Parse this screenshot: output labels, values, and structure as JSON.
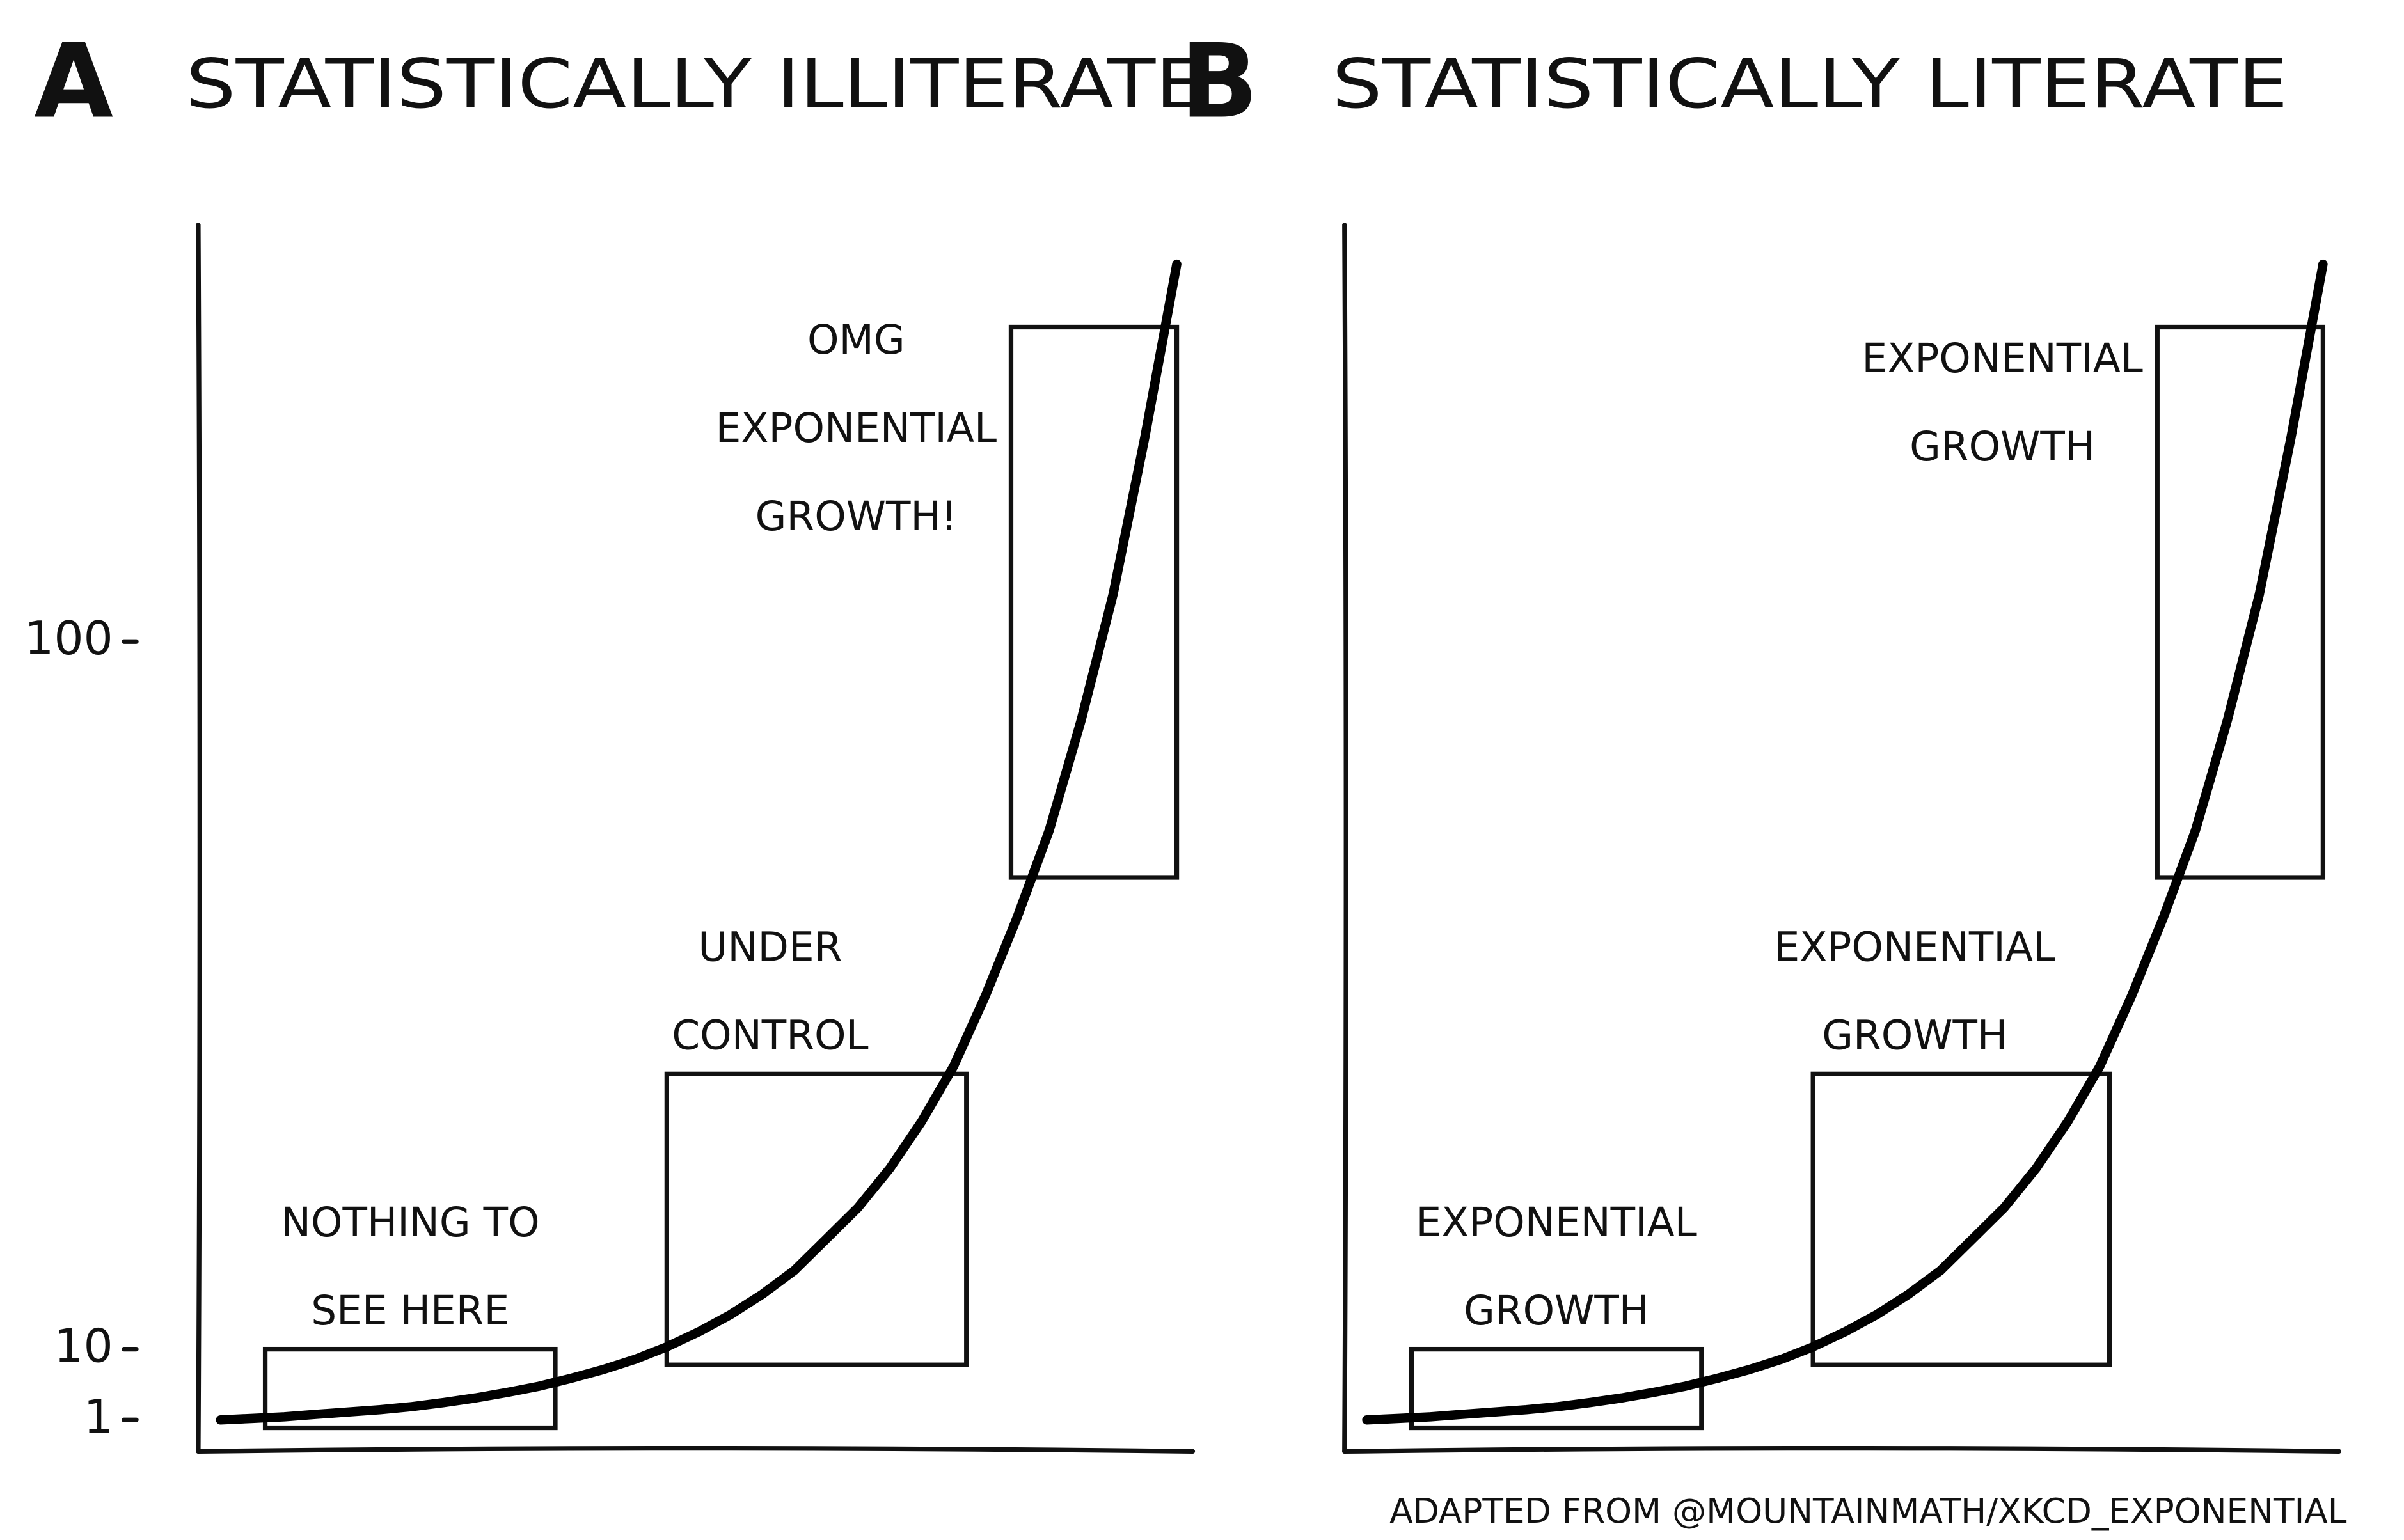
{
  "chart_data": [
    {
      "type": "line",
      "panel": "A",
      "title": "STATISTICALLY ILLITERATE",
      "x": [
        0,
        1,
        2,
        3,
        4,
        5,
        6,
        7,
        8,
        9,
        10,
        11,
        12,
        13,
        14,
        15,
        16,
        17,
        18,
        19,
        20,
        21,
        22,
        23,
        24,
        25,
        26,
        27,
        28,
        29,
        30
      ],
      "values": [
        1.0,
        1.2,
        1.4,
        1.7,
        2.0,
        2.3,
        2.7,
        3.2,
        3.8,
        4.5,
        5.3,
        6.3,
        7.4,
        8.7,
        10.3,
        12.2,
        14.4,
        17,
        20,
        24,
        28,
        33,
        39,
        46,
        55,
        65,
        76,
        90,
        106,
        126,
        148
      ],
      "color": "#000000",
      "xlim": [
        -0.7,
        30.5
      ],
      "ylim": [
        -3,
        153
      ],
      "yticks": [
        1,
        10,
        100
      ],
      "annotations": [
        {
          "text": [
            "NOTHING TO",
            "SEE HERE"
          ],
          "xrange": [
            1.4,
            10.5
          ],
          "yrange": [
            0,
            10
          ]
        },
        {
          "text": [
            "UNDER",
            "CONTROL"
          ],
          "xrange": [
            14,
            23.4
          ],
          "yrange": [
            8,
            45
          ]
        },
        {
          "text": [
            "OMG",
            "EXPONENTIAL",
            "GROWTH!"
          ],
          "xrange": [
            24.8,
            30
          ],
          "yrange": [
            70,
            140
          ]
        }
      ]
    },
    {
      "type": "line",
      "panel": "B",
      "title": "STATISTICALLY LITERATE",
      "x": [
        0,
        1,
        2,
        3,
        4,
        5,
        6,
        7,
        8,
        9,
        10,
        11,
        12,
        13,
        14,
        15,
        16,
        17,
        18,
        19,
        20,
        21,
        22,
        23,
        24,
        25,
        26,
        27,
        28,
        29,
        30
      ],
      "values": [
        1.0,
        1.2,
        1.4,
        1.7,
        2.0,
        2.3,
        2.7,
        3.2,
        3.8,
        4.5,
        5.3,
        6.3,
        7.4,
        8.7,
        10.3,
        12.2,
        14.4,
        17,
        20,
        24,
        28,
        33,
        39,
        46,
        55,
        65,
        76,
        90,
        106,
        126,
        148
      ],
      "color": "#000000",
      "xlim": [
        -0.7,
        30.5
      ],
      "ylim": [
        -3,
        153
      ],
      "annotations": [
        {
          "text": [
            "EXPONENTIAL",
            "GROWTH"
          ],
          "xrange": [
            1.4,
            10.5
          ],
          "yrange": [
            0,
            10
          ]
        },
        {
          "text": [
            "EXPONENTIAL",
            "GROWTH"
          ],
          "xrange": [
            14,
            23.3
          ],
          "yrange": [
            8,
            45
          ]
        },
        {
          "text": [
            "EXPONENTIAL",
            "GROWTH"
          ],
          "xrange": [
            24.8,
            30
          ],
          "yrange": [
            70,
            140
          ]
        }
      ]
    }
  ],
  "footer": "ADAPTED FROM @MOUNTAINMATH/XKCD_EXPONENTIAL"
}
